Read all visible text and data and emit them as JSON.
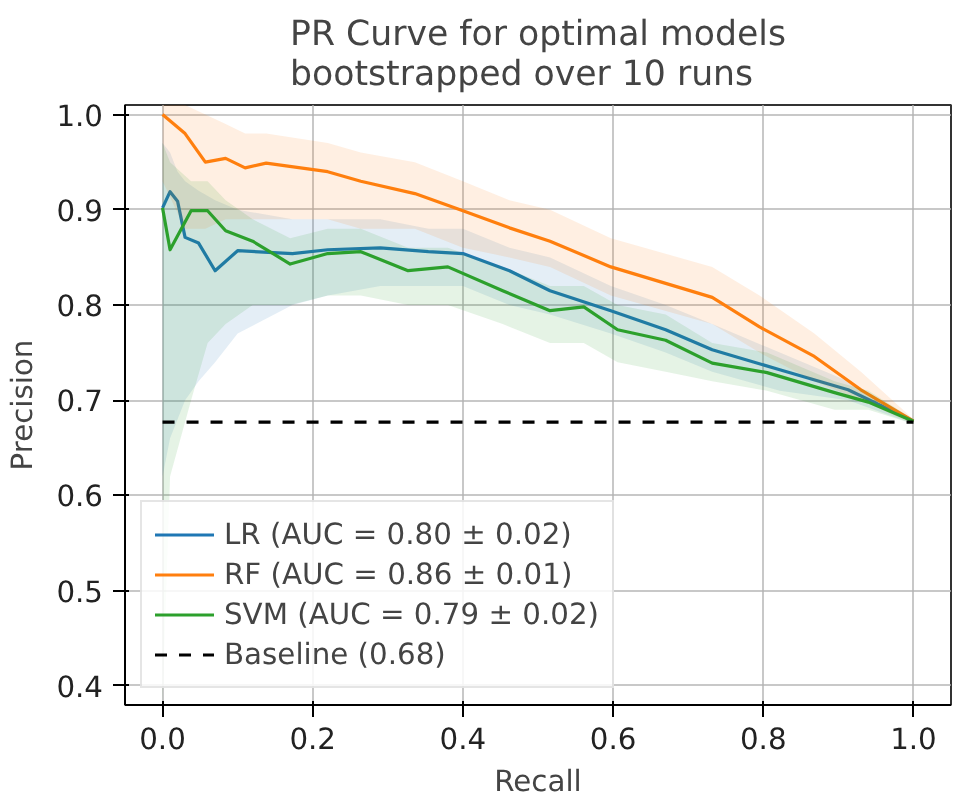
{
  "chart_data": {
    "type": "line",
    "title": "PR Curve for optimal models\nbootstrapped over 10 runs",
    "xlabel": "Recall",
    "ylabel": "Precision",
    "xlim": [
      -0.05,
      1.05
    ],
    "ylim": [
      0.38,
      1.01
    ],
    "xticks": [
      {
        "value": 0,
        "label": "0.0"
      },
      0.2,
      0.4,
      0.6,
      0.8,
      {
        "value": 1,
        "label": "1.0"
      }
    ],
    "yticks": [
      0.4,
      0.5,
      0.6,
      0.7,
      0.8,
      0.9,
      {
        "value": 1,
        "label": "1.0"
      }
    ],
    "grid": true,
    "legend": "bottom left",
    "line_style": "solid",
    "marker": "none",
    "series": [
      {
        "name": "LR (AUC = 0.80 ± 0.02)",
        "color": "#1f77b4",
        "x": [
          0,
          0.01,
          0.02,
          0.03,
          0.048,
          0.07,
          0.1,
          0.173,
          0.22,
          0.29,
          0.354,
          0.4,
          0.462,
          0.516,
          0.597,
          0.67,
          0.732,
          0.822,
          0.913,
          1.0
        ],
        "values": [
          0.902,
          0.919,
          0.909,
          0.871,
          0.865,
          0.836,
          0.857,
          0.854,
          0.858,
          0.86,
          0.856,
          0.854,
          0.836,
          0.815,
          0.794,
          0.774,
          0.753,
          0.732,
          0.711,
          0.678
        ],
        "lower": [
          0.62,
          0.66,
          0.68,
          0.7,
          0.72,
          0.74,
          0.77,
          0.8,
          0.81,
          0.82,
          0.82,
          0.82,
          0.8,
          0.79,
          0.77,
          0.75,
          0.73,
          0.71,
          0.7,
          0.675
        ],
        "upper": [
          0.97,
          0.96,
          0.94,
          0.93,
          0.92,
          0.91,
          0.9,
          0.89,
          0.89,
          0.89,
          0.88,
          0.88,
          0.86,
          0.85,
          0.82,
          0.8,
          0.78,
          0.75,
          0.72,
          0.68
        ]
      },
      {
        "name": "RF (AUC = 0.86 ± 0.01)",
        "color": "#ff7f0e",
        "x": [
          0,
          0.03,
          0.057,
          0.084,
          0.11,
          0.138,
          0.22,
          0.264,
          0.336,
          0.4,
          0.462,
          0.516,
          0.597,
          0.732,
          0.795,
          0.868,
          0.93,
          1.0
        ],
        "values": [
          1.0,
          0.98,
          0.95,
          0.954,
          0.944,
          0.949,
          0.94,
          0.93,
          0.917,
          0.899,
          0.881,
          0.867,
          0.84,
          0.808,
          0.777,
          0.746,
          0.711,
          0.678
        ],
        "lower": [
          0.93,
          0.88,
          0.88,
          0.89,
          0.89,
          0.89,
          0.89,
          0.88,
          0.88,
          0.86,
          0.85,
          0.84,
          0.81,
          0.78,
          0.75,
          0.72,
          0.7,
          0.675
        ],
        "upper": [
          1.01,
          1.01,
          1.0,
          0.99,
          0.98,
          0.98,
          0.97,
          0.96,
          0.95,
          0.93,
          0.91,
          0.9,
          0.87,
          0.84,
          0.81,
          0.77,
          0.73,
          0.68
        ]
      },
      {
        "name": "SVM (AUC = 0.79 ± 0.02)",
        "color": "#2ca02c",
        "x": [
          0,
          0.01,
          0.038,
          0.06,
          0.084,
          0.12,
          0.17,
          0.22,
          0.264,
          0.327,
          0.38,
          0.453,
          0.516,
          0.561,
          0.606,
          0.67,
          0.732,
          0.805,
          0.895,
          0.94,
          1.0
        ],
        "values": [
          0.902,
          0.858,
          0.899,
          0.899,
          0.878,
          0.867,
          0.843,
          0.854,
          0.856,
          0.836,
          0.84,
          0.815,
          0.794,
          0.798,
          0.774,
          0.763,
          0.739,
          0.729,
          0.708,
          0.698,
          0.678
        ],
        "lower": [
          0.38,
          0.62,
          0.7,
          0.76,
          0.78,
          0.8,
          0.8,
          0.81,
          0.81,
          0.8,
          0.8,
          0.78,
          0.76,
          0.76,
          0.74,
          0.73,
          0.72,
          0.71,
          0.69,
          0.69,
          0.675
        ],
        "upper": [
          0.97,
          0.95,
          0.93,
          0.93,
          0.91,
          0.89,
          0.87,
          0.88,
          0.88,
          0.86,
          0.86,
          0.84,
          0.82,
          0.82,
          0.8,
          0.79,
          0.76,
          0.75,
          0.72,
          0.71,
          0.68
        ]
      },
      {
        "name": "Baseline (0.68)",
        "color": "#000000",
        "line_style": "dashed",
        "x": [
          0,
          1
        ],
        "values": [
          0.677,
          0.677
        ]
      }
    ]
  }
}
